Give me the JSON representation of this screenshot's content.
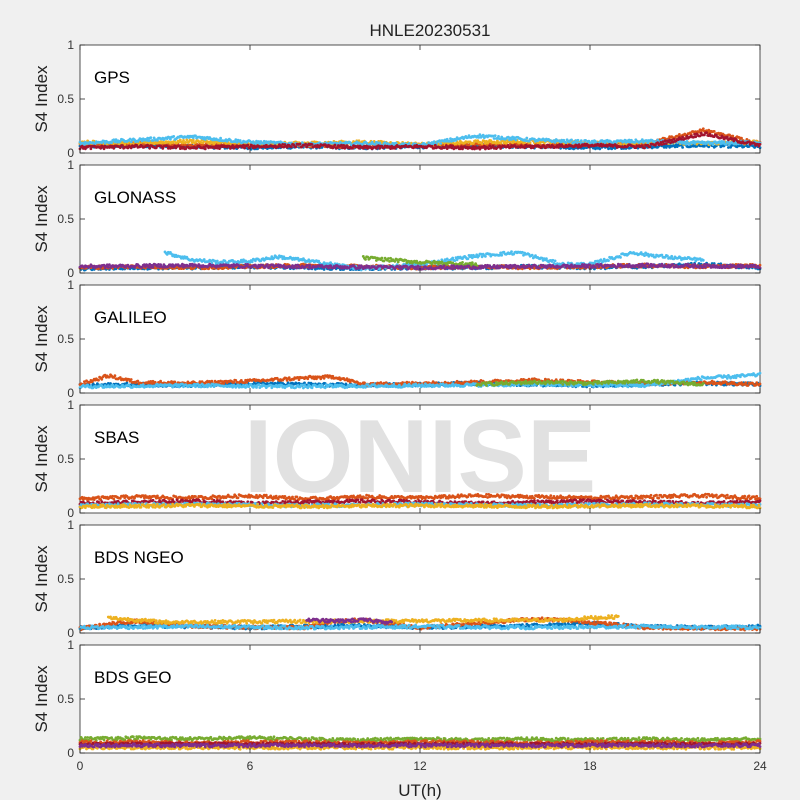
{
  "chart_data": {
    "type": "scatter",
    "title": "HNLE20230531",
    "xlabel": "UT(h)",
    "ylabel": "S4 Index",
    "xlim": [
      0,
      24
    ],
    "ylim": [
      0,
      1
    ],
    "x_ticks": [
      "0",
      "6",
      "12",
      "18",
      "24"
    ],
    "y_ticks": [
      "0",
      "0.5",
      "1"
    ],
    "grid": false,
    "watermark": "IONISE",
    "colors": [
      "#0072bd",
      "#d95319",
      "#edb120",
      "#7e2f8e",
      "#77ac30",
      "#4dbeee",
      "#a2142f"
    ],
    "panels": [
      {
        "label": "GPS",
        "series": [
          {
            "color": "#0072bd",
            "x": [
              0,
              2,
              4,
              6,
              8,
              10,
              12,
              14,
              16,
              18,
              20,
              22,
              24
            ],
            "y": [
              0.06,
              0.07,
              0.06,
              0.05,
              0.06,
              0.05,
              0.06,
              0.07,
              0.06,
              0.05,
              0.06,
              0.07,
              0.06
            ]
          },
          {
            "color": "#d95319",
            "x": [
              0,
              2,
              4,
              6,
              8,
              10,
              12,
              14,
              16,
              18,
              20,
              22,
              24
            ],
            "y": [
              0.08,
              0.09,
              0.07,
              0.08,
              0.07,
              0.06,
              0.07,
              0.08,
              0.07,
              0.08,
              0.09,
              0.21,
              0.09
            ]
          },
          {
            "color": "#edb120",
            "x": [
              0,
              2,
              4,
              6,
              8,
              10,
              12,
              14,
              16,
              18,
              20,
              22,
              24
            ],
            "y": [
              0.1,
              0.09,
              0.11,
              0.08,
              0.09,
              0.1,
              0.08,
              0.1,
              0.11,
              0.09,
              0.1,
              0.09,
              0.1
            ]
          },
          {
            "color": "#4dbeee",
            "x": [
              0,
              2,
              4,
              6,
              8,
              10,
              12,
              14,
              16,
              18,
              20,
              22,
              24
            ],
            "y": [
              0.09,
              0.12,
              0.15,
              0.1,
              0.08,
              0.09,
              0.07,
              0.16,
              0.12,
              0.1,
              0.11,
              0.09,
              0.1
            ]
          },
          {
            "color": "#a2142f",
            "x": [
              0,
              2,
              4,
              6,
              8,
              10,
              12,
              14,
              16,
              18,
              20,
              22,
              24
            ],
            "y": [
              0.05,
              0.06,
              0.05,
              0.06,
              0.07,
              0.05,
              0.06,
              0.05,
              0.06,
              0.07,
              0.06,
              0.18,
              0.07
            ]
          }
        ]
      },
      {
        "label": "GLONASS",
        "series": [
          {
            "color": "#0072bd",
            "x": [
              0,
              2,
              4,
              6,
              8,
              10,
              12,
              14,
              16,
              18,
              20,
              22,
              24
            ],
            "y": [
              0.04,
              0.05,
              0.05,
              0.06,
              0.05,
              0.04,
              0.05,
              0.05,
              0.06,
              0.05,
              0.06,
              0.08,
              0.05
            ]
          },
          {
            "color": "#d95319",
            "x": [
              0,
              2,
              4,
              6,
              8,
              10,
              12,
              14,
              16,
              18,
              20,
              22,
              24
            ],
            "y": [
              0.05,
              0.06,
              0.05,
              0.06,
              0.07,
              0.06,
              0.05,
              0.06,
              0.05,
              0.06,
              0.07,
              0.06,
              0.07
            ]
          },
          {
            "color": "#4dbeee",
            "x": [
              3,
              4,
              5,
              6,
              7,
              10,
              12,
              14,
              15.5,
              17,
              18,
              19.5,
              20,
              21,
              22
            ],
            "y": [
              0.19,
              0.12,
              0.1,
              0.11,
              0.15,
              0.04,
              0.08,
              0.16,
              0.19,
              0.08,
              0.08,
              0.19,
              0.17,
              0.14,
              0.12
            ]
          },
          {
            "color": "#77ac30",
            "x": [
              10,
              11,
              12,
              13,
              14
            ],
            "y": [
              0.14,
              0.12,
              0.1,
              0.09,
              0.08
            ]
          },
          {
            "color": "#7e2f8e",
            "x": [
              0,
              4,
              8,
              12,
              16,
              20,
              24
            ],
            "y": [
              0.06,
              0.07,
              0.06,
              0.05,
              0.06,
              0.07,
              0.06
            ]
          }
        ]
      },
      {
        "label": "GALILEO",
        "series": [
          {
            "color": "#0072bd",
            "x": [
              0,
              2,
              4,
              6,
              8,
              10,
              12,
              14,
              16,
              18,
              20,
              22,
              24
            ],
            "y": [
              0.07,
              0.08,
              0.07,
              0.09,
              0.08,
              0.07,
              0.08,
              0.09,
              0.08,
              0.07,
              0.08,
              0.09,
              0.08
            ]
          },
          {
            "color": "#d95319",
            "x": [
              0,
              1,
              2,
              4,
              6,
              8,
              9,
              10,
              12,
              14,
              16,
              18,
              20,
              22,
              24
            ],
            "y": [
              0.08,
              0.16,
              0.1,
              0.09,
              0.11,
              0.14,
              0.15,
              0.08,
              0.09,
              0.1,
              0.12,
              0.1,
              0.09,
              0.1,
              0.08
            ]
          },
          {
            "color": "#4dbeee",
            "x": [
              0,
              4,
              8,
              12,
              16,
              20,
              22,
              23,
              24
            ],
            "y": [
              0.06,
              0.07,
              0.06,
              0.07,
              0.08,
              0.07,
              0.14,
              0.15,
              0.17
            ]
          },
          {
            "color": "#77ac30",
            "x": [
              14,
              16,
              18,
              20,
              22
            ],
            "y": [
              0.08,
              0.1,
              0.09,
              0.11,
              0.08
            ]
          }
        ]
      },
      {
        "label": "SBAS",
        "series": [
          {
            "color": "#d95319",
            "x": [
              0,
              2,
              4,
              6,
              8,
              10,
              12,
              14,
              16,
              18,
              20,
              22,
              24
            ],
            "y": [
              0.13,
              0.15,
              0.14,
              0.16,
              0.13,
              0.15,
              0.14,
              0.16,
              0.15,
              0.14,
              0.15,
              0.16,
              0.14
            ]
          },
          {
            "color": "#a2142f",
            "x": [
              0,
              2,
              4,
              6,
              8,
              10,
              12,
              14,
              16,
              18,
              20,
              22,
              24
            ],
            "y": [
              0.09,
              0.1,
              0.11,
              0.09,
              0.1,
              0.11,
              0.1,
              0.09,
              0.1,
              0.11,
              0.1,
              0.09,
              0.1
            ]
          },
          {
            "color": "#4dbeee",
            "x": [
              0,
              4,
              8,
              12,
              16,
              20,
              24
            ],
            "y": [
              0.07,
              0.08,
              0.07,
              0.08,
              0.07,
              0.08,
              0.07
            ]
          },
          {
            "color": "#edb120",
            "x": [
              0,
              4,
              8,
              12,
              16,
              20,
              24
            ],
            "y": [
              0.06,
              0.07,
              0.06,
              0.07,
              0.06,
              0.07,
              0.06
            ]
          }
        ]
      },
      {
        "label": "BDS NGEO",
        "series": [
          {
            "color": "#0072bd",
            "x": [
              0,
              2,
              4,
              6,
              8,
              10,
              12,
              14,
              16,
              18,
              20,
              22,
              24
            ],
            "y": [
              0.05,
              0.07,
              0.06,
              0.05,
              0.06,
              0.07,
              0.05,
              0.06,
              0.07,
              0.09,
              0.06,
              0.05,
              0.06
            ]
          },
          {
            "color": "#d95319",
            "x": [
              0,
              1,
              2,
              4,
              8,
              9,
              10,
              12,
              16,
              17,
              18,
              20,
              24
            ],
            "y": [
              0.04,
              0.08,
              0.11,
              0.06,
              0.05,
              0.11,
              0.12,
              0.05,
              0.13,
              0.12,
              0.1,
              0.05,
              0.04
            ]
          },
          {
            "color": "#edb120",
            "x": [
              1,
              2,
              3,
              17,
              18,
              19
            ],
            "y": [
              0.14,
              0.12,
              0.1,
              0.12,
              0.14,
              0.15
            ]
          },
          {
            "color": "#4dbeee",
            "x": [
              0,
              4,
              8,
              12,
              16,
              20,
              24
            ],
            "y": [
              0.05,
              0.06,
              0.05,
              0.06,
              0.05,
              0.06,
              0.05
            ]
          },
          {
            "color": "#7e2f8e",
            "x": [
              8,
              9,
              10,
              11
            ],
            "y": [
              0.12,
              0.11,
              0.12,
              0.1
            ]
          }
        ]
      },
      {
        "label": "BDS GEO",
        "series": [
          {
            "color": "#77ac30",
            "x": [
              0,
              2,
              4,
              6,
              8,
              10,
              12,
              14,
              16,
              18,
              20,
              22,
              24
            ],
            "y": [
              0.13,
              0.14,
              0.13,
              0.14,
              0.13,
              0.12,
              0.13,
              0.12,
              0.13,
              0.12,
              0.13,
              0.12,
              0.13
            ]
          },
          {
            "color": "#d95319",
            "x": [
              0,
              2,
              4,
              6,
              8,
              10,
              12,
              14,
              16,
              18,
              20,
              22,
              24
            ],
            "y": [
              0.1,
              0.1,
              0.09,
              0.1,
              0.1,
              0.09,
              0.1,
              0.1,
              0.09,
              0.1,
              0.1,
              0.09,
              0.1
            ]
          },
          {
            "color": "#a2142f",
            "x": [
              0,
              2,
              4,
              6,
              8,
              10,
              12,
              14,
              16,
              18,
              20,
              22,
              24
            ],
            "y": [
              0.08,
              0.08,
              0.08,
              0.08,
              0.08,
              0.08,
              0.08,
              0.08,
              0.08,
              0.08,
              0.08,
              0.08,
              0.08
            ]
          },
          {
            "color": "#edb120",
            "x": [
              0,
              2,
              4,
              6,
              8,
              10,
              12,
              14,
              16,
              18,
              20,
              22,
              24
            ],
            "y": [
              0.05,
              0.05,
              0.05,
              0.05,
              0.05,
              0.05,
              0.05,
              0.05,
              0.05,
              0.05,
              0.05,
              0.05,
              0.05
            ]
          },
          {
            "color": "#7e2f8e",
            "x": [
              0,
              2,
              4,
              6,
              8,
              10,
              12,
              14,
              16,
              18,
              20,
              22,
              24
            ],
            "y": [
              0.07,
              0.07,
              0.07,
              0.07,
              0.07,
              0.07,
              0.07,
              0.07,
              0.07,
              0.07,
              0.07,
              0.07,
              0.07
            ]
          }
        ]
      }
    ]
  }
}
